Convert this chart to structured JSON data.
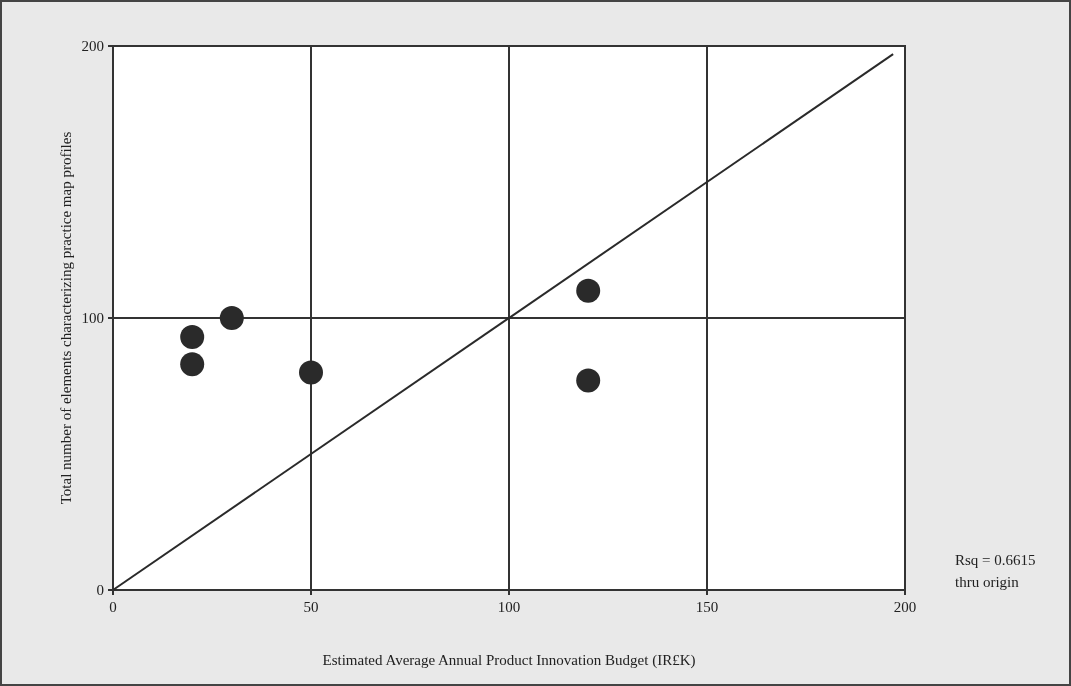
{
  "chart_data": {
    "type": "scatter",
    "xlabel": "Estimated Average Annual Product Innovation Budget (IR£K)",
    "ylabel": "Total number of elements characterizing practice map profiles",
    "series": [
      {
        "color": "#2a2a2a",
        "marker": "circle",
        "x": [
          20,
          20,
          30,
          50,
          120,
          120
        ],
        "values": [
          93,
          83,
          100,
          80,
          110,
          77
        ]
      },
      {
        "type": "line",
        "color": "#2a2a2a",
        "x": [
          0,
          197
        ],
        "values": [
          0,
          197
        ]
      }
    ],
    "xlim": [
      0,
      200
    ],
    "ylim": [
      0,
      200
    ],
    "xticks": [
      0,
      50,
      100,
      150,
      200
    ],
    "yticks": [
      0,
      100,
      200
    ],
    "grid": true,
    "annotations": [
      "Rsq = 0.6615",
      "thru origin"
    ]
  }
}
